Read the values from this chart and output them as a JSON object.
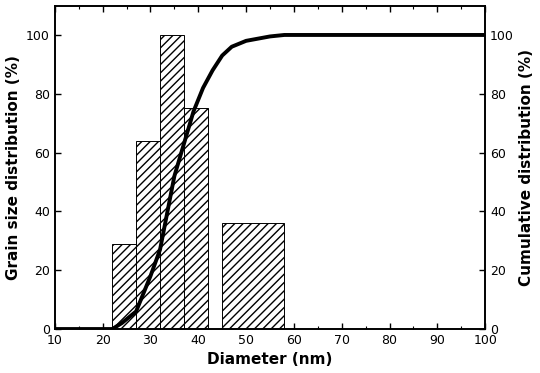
{
  "bar_left_edges": [
    22,
    27,
    32,
    37,
    45
  ],
  "bar_widths": [
    5,
    5,
    5,
    5,
    13
  ],
  "bar_heights": [
    29,
    64,
    100,
    75,
    36
  ],
  "cumulative_x": [
    10,
    22,
    24,
    27,
    30,
    32,
    35,
    37,
    39,
    41,
    43,
    45,
    47,
    50,
    55,
    58,
    65,
    100
  ],
  "cumulative_y": [
    0,
    0,
    2,
    6,
    18,
    27,
    52,
    63,
    74,
    82,
    88,
    93,
    96,
    98,
    99.5,
    100,
    100,
    100
  ],
  "xlabel": "Diameter (nm)",
  "ylabel_left": "Grain size distribution (%)",
  "ylabel_right": "Cumulative distribution (%)",
  "xlim": [
    10,
    100
  ],
  "ylim": [
    0,
    110
  ],
  "xticks": [
    10,
    20,
    30,
    40,
    50,
    60,
    70,
    80,
    90,
    100
  ],
  "yticks": [
    0,
    20,
    40,
    60,
    80,
    100
  ],
  "hatch": "////",
  "line_color": "#000000",
  "line_width": 2.8,
  "background_color": "#ffffff",
  "fontsize_label": 11,
  "fontsize_tick": 9
}
